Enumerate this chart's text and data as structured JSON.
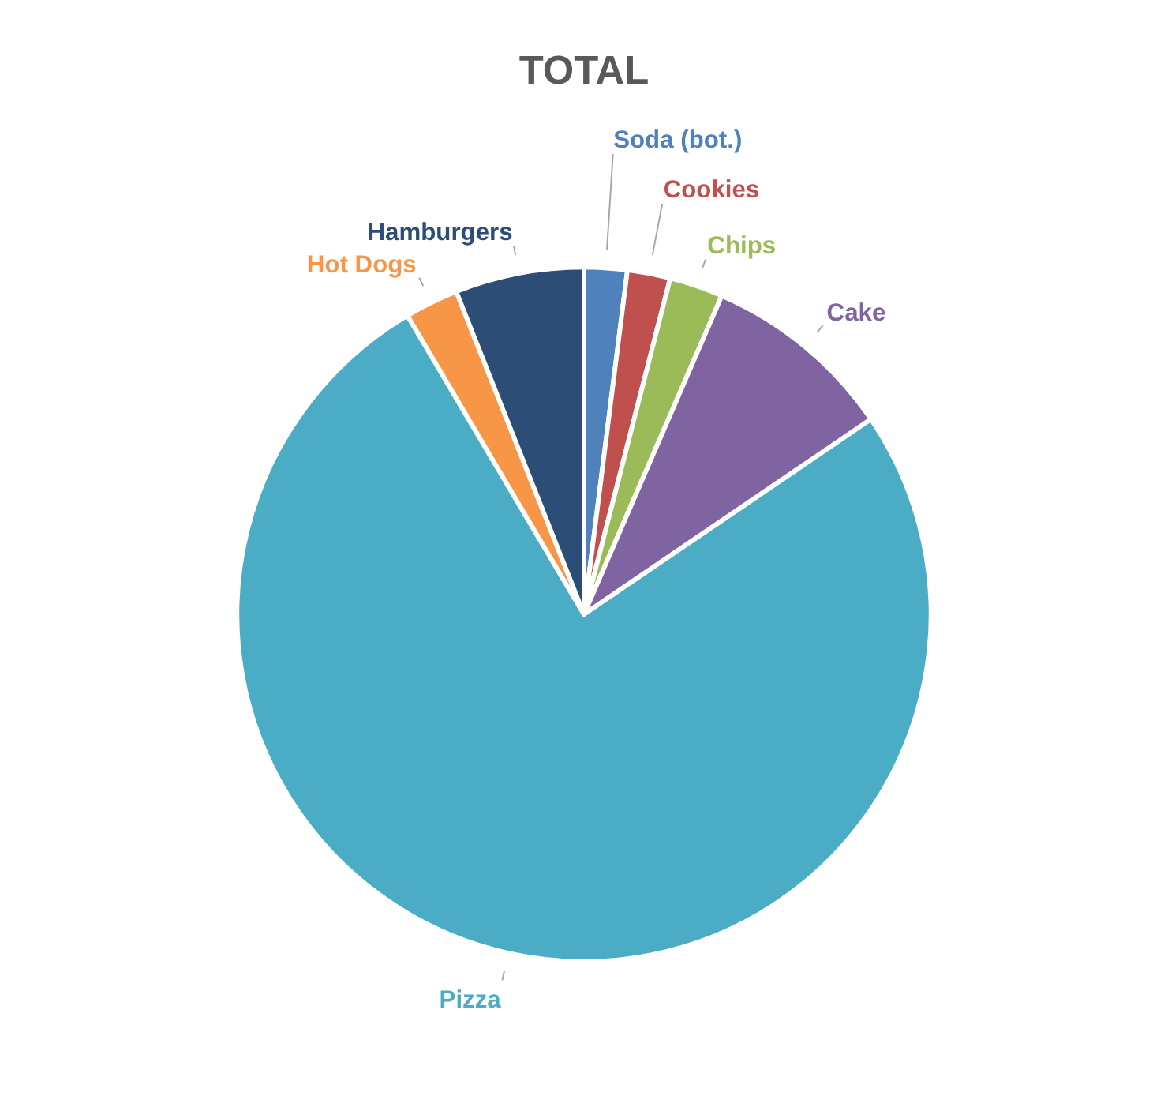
{
  "chart_data": {
    "type": "pie",
    "title": "TOTAL",
    "categories": [
      "Soda (bot.)",
      "Cookies",
      "Chips",
      "Cake",
      "Pizza",
      "Hot Dogs",
      "Hamburgers"
    ],
    "values": [
      2,
      2,
      2.5,
      9,
      76,
      2.5,
      6
    ],
    "colors": [
      "#4f81bd",
      "#c0504d",
      "#9bbb59",
      "#8064a2",
      "#4bacc6",
      "#f79646",
      "#2c4d75"
    ],
    "legend": false
  }
}
